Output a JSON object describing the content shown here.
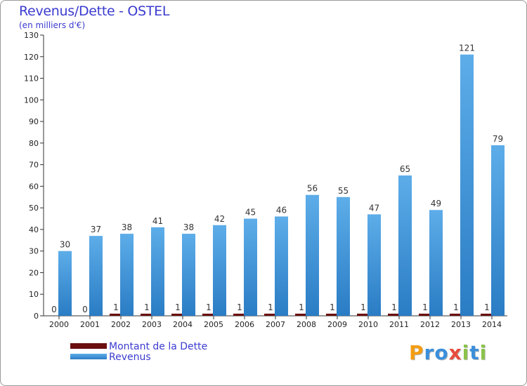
{
  "chart_data": {
    "type": "bar",
    "title": "Revenus/Dette - OSTEL",
    "subtitle": "(en milliers d'€)",
    "categories": [
      "2000",
      "2001",
      "2002",
      "2003",
      "2004",
      "2005",
      "2006",
      "2007",
      "2008",
      "2009",
      "2010",
      "2011",
      "2012",
      "2013",
      "2014"
    ],
    "series": [
      {
        "name": "Montant de la Dette",
        "color": "#6b0f0f",
        "values": [
          0,
          0,
          1,
          1,
          1,
          1,
          1,
          1,
          1,
          1,
          1,
          1,
          1,
          1,
          1
        ]
      },
      {
        "name": "Revenus",
        "color": "#3a8fdb",
        "values": [
          30,
          37,
          38,
          41,
          38,
          42,
          45,
          46,
          56,
          55,
          47,
          65,
          49,
          121,
          79
        ]
      }
    ],
    "ylim": [
      0,
      130
    ],
    "yticks": [
      0,
      10,
      20,
      30,
      40,
      50,
      60,
      70,
      80,
      90,
      100,
      110,
      120,
      130
    ],
    "grid": false,
    "legend_position": "bottom-left"
  },
  "logo": {
    "letters": [
      "P",
      "r",
      "o",
      "x",
      "i",
      "t",
      "i"
    ],
    "colors": [
      "#f39c12",
      "#3a8fdb",
      "#3a8fdb",
      "#e74c3c",
      "#8bc34a",
      "#3a8fdb",
      "#8bc34a"
    ]
  }
}
